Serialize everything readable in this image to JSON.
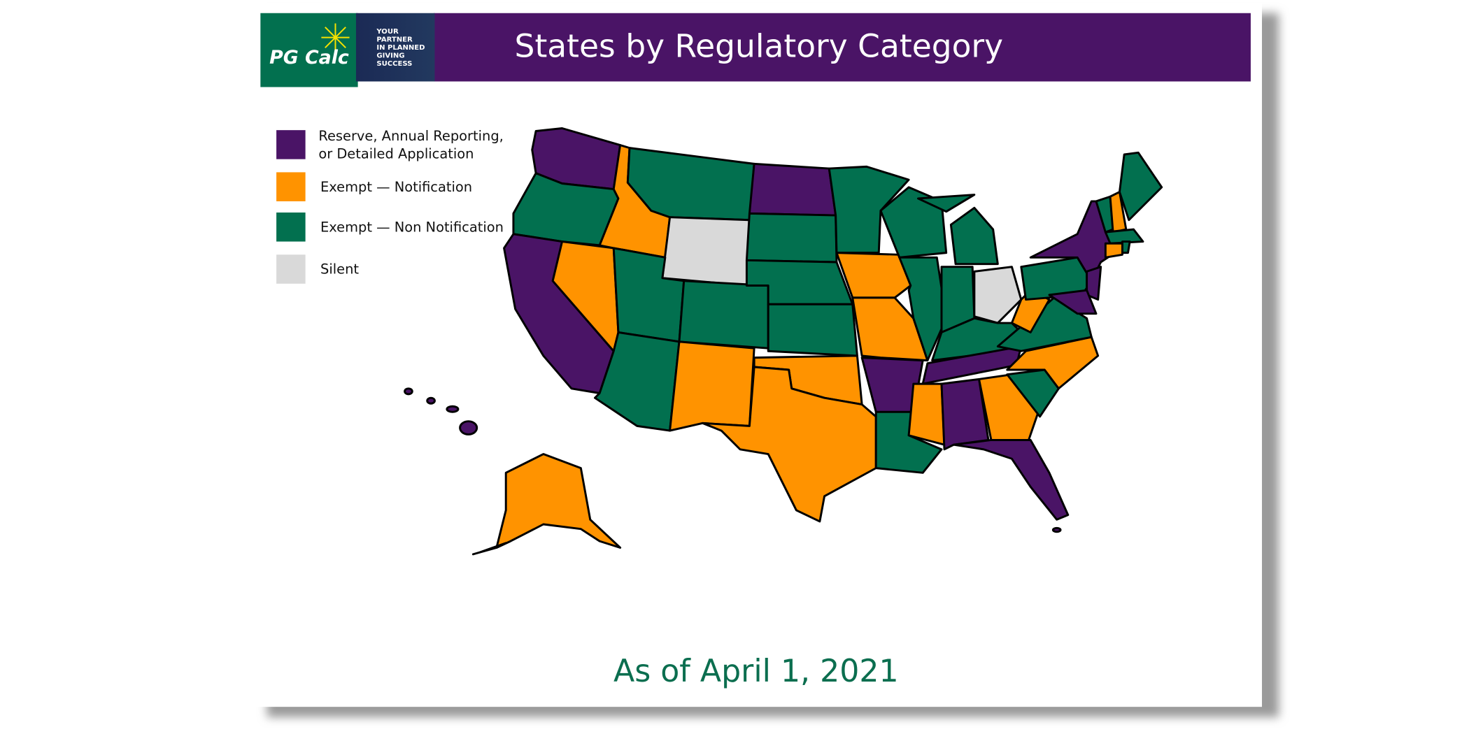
{
  "header": {
    "title": "States by Regulatory Category",
    "logo": {
      "name": "PG Calc",
      "tagline": [
        "YOUR",
        "PARTNER",
        "IN PLANNED",
        "GIVING",
        "SUCCESS"
      ]
    }
  },
  "legend": {
    "items": [
      {
        "lines": [
          "Reserve, Annual Reporting,",
          "or Detailed Application"
        ],
        "color": "#4a1466"
      },
      {
        "lines": [
          "Exempt — Notification"
        ],
        "color": "#ff9300"
      },
      {
        "lines": [
          "Exempt — Non Notification"
        ],
        "color": "#02704f"
      },
      {
        "lines": [
          "Silent"
        ],
        "color": "#d9d9d9"
      }
    ]
  },
  "footer": {
    "text": "As of April 1, 2021"
  }
}
